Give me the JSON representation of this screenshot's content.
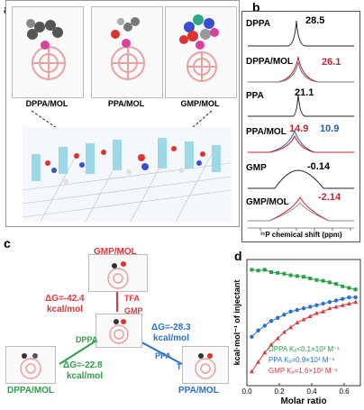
{
  "panel_a": {
    "label": "a",
    "molecules": [
      "DPPA/MOL",
      "PPA/MOL",
      "GMP/MOL"
    ]
  },
  "panel_b": {
    "label": "b",
    "spectra": [
      {
        "name": "DPPA",
        "shift": "28.5",
        "color": "#000000"
      },
      {
        "name": "DPPA/MOL",
        "shift": "26.1",
        "color": "#c0262d"
      },
      {
        "name": "PPA",
        "shift": "21.1",
        "color": "#000000"
      },
      {
        "name": "PPA/MOL",
        "shift_a": "14.9",
        "shift_b": "10.9",
        "color_a": "#c0262d",
        "color_b": "#2a5db0"
      },
      {
        "name": "GMP",
        "shift": "-0.14",
        "color": "#000000"
      },
      {
        "name": "GMP/MOL",
        "shift": "-2.14",
        "color": "#c0262d"
      }
    ],
    "xlabel": "³¹P chemical shift (ppm)"
  },
  "panel_c": {
    "label": "c",
    "gmp_mol": "GMP/MOL",
    "dppa_mol": "DPPA/MOL",
    "ppa_mol": "PPA/MOL",
    "gmp_dg": "ΔG=-42.4",
    "gmp_unit": "kcal/mol",
    "ppa_dg": "ΔG=-28.3",
    "ppa_unit": "kcal/mol",
    "dppa_dg": "ΔG=-22.8",
    "dppa_unit": "kcal/mol",
    "tfa": "TFA",
    "gmp": "GMP",
    "dppa": "DPPA",
    "ppa": "PPA",
    "colors": {
      "gmp": "#d8383e",
      "ppa": "#2a6fc9",
      "dppa": "#2e9e4a"
    }
  },
  "chart_data": {
    "type": "scatter",
    "title": "",
    "xlabel": "Molar ratio",
    "ylabel": "kcal·mol⁻¹ of injectant",
    "xlim": [
      0.0,
      0.7
    ],
    "xticks": [
      "0.0",
      "0.2",
      "0.4",
      "0.6"
    ],
    "series": [
      {
        "name": "DPPA Kₐ<0.1×10³ M⁻¹",
        "color": "#2e9e4a",
        "x": [
          0.03,
          0.07,
          0.11,
          0.15,
          0.19,
          0.23,
          0.27,
          0.31,
          0.35,
          0.39,
          0.43,
          0.47,
          0.51,
          0.55,
          0.59,
          0.63,
          0.67
        ],
        "y": [
          -0.15,
          -0.2,
          -0.15,
          -0.3,
          -0.35,
          -0.4,
          -0.5,
          -0.55,
          -0.6,
          -0.7,
          -0.8,
          -0.85,
          -0.95,
          -1.05,
          -1.2,
          -1.3,
          -1.4
        ]
      },
      {
        "name": "PPA Kₐ=0.9×10³ M⁻¹",
        "color": "#2a6fc9",
        "x": [
          0.03,
          0.07,
          0.11,
          0.15,
          0.19,
          0.23,
          0.27,
          0.31,
          0.35,
          0.39,
          0.43,
          0.47,
          0.51,
          0.55,
          0.59,
          0.63,
          0.67
        ],
        "y": [
          -4.4,
          -4.0,
          -3.7,
          -3.4,
          -3.2,
          -3.0,
          -2.8,
          -2.7,
          -2.6,
          -2.5,
          -2.4,
          -2.3,
          -2.2,
          -2.1,
          -2.0,
          -1.9,
          -1.9
        ]
      },
      {
        "name": "GMP Kₐ=1.6×10³ M⁻¹",
        "color": "#d8383e",
        "x": [
          0.03,
          0.07,
          0.11,
          0.15,
          0.19,
          0.23,
          0.27,
          0.31,
          0.35,
          0.39,
          0.43,
          0.47,
          0.51,
          0.55,
          0.59,
          0.63,
          0.67
        ],
        "y": [
          -6.6,
          -6.0,
          -5.4,
          -4.9,
          -4.5,
          -4.1,
          -3.8,
          -3.5,
          -3.3,
          -3.1,
          -2.9,
          -2.8,
          -2.6,
          -2.5,
          -2.4,
          -2.3,
          -2.2
        ]
      }
    ],
    "label": "d"
  }
}
